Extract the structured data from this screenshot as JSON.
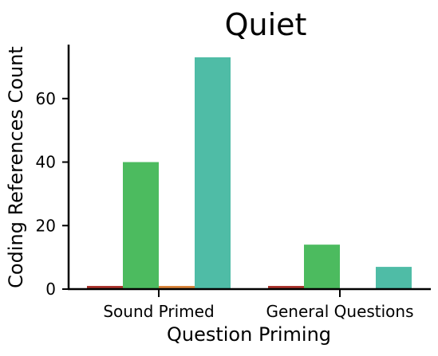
{
  "chart_data": {
    "type": "bar",
    "title": "Quiet",
    "xlabel": "Question Priming",
    "ylabel": "Coding References Count",
    "categories": [
      "Sound Primed",
      "General Questions"
    ],
    "series": [
      {
        "color": "#a9322c",
        "values": [
          1,
          1
        ]
      },
      {
        "color": "#4cbb5f",
        "values": [
          40,
          14
        ]
      },
      {
        "color": "#d9843a",
        "values": [
          1,
          0
        ]
      },
      {
        "color": "#4fbca6",
        "values": [
          73,
          7
        ]
      }
    ],
    "ylim": [
      0,
      77
    ],
    "yticks": [
      0,
      20,
      40,
      60
    ],
    "grid": false,
    "legend": "none"
  }
}
